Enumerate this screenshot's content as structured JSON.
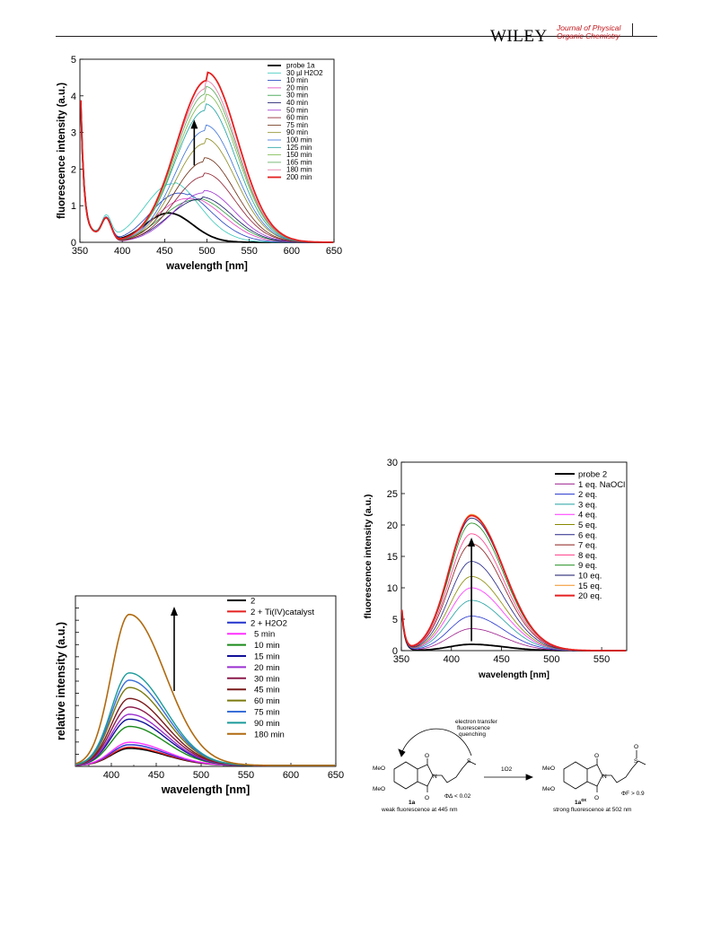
{
  "header": {
    "publisher": "WILEY",
    "journal_line1": "Journal of Physical",
    "journal_line2": "Organic Chemistry"
  },
  "chart_data": [
    {
      "type": "line",
      "xlabel": "wavelength [nm]",
      "ylabel": "fluorescence intensity (a.u.)",
      "xlim": [
        350,
        650
      ],
      "ylim": [
        0,
        5
      ],
      "xticks": [
        350,
        400,
        450,
        500,
        550,
        600,
        650
      ],
      "yticks": [
        0,
        1,
        2,
        3,
        4,
        5
      ],
      "legend_position": "top-right",
      "arrow": {
        "x": 485,
        "y_from": 2.1,
        "y_to": 3.35
      },
      "series": [
        {
          "name": "probe 1a",
          "peak_x": 452,
          "peak_y": 1.0,
          "color": "#000000",
          "bold": true
        },
        {
          "name": "30 µl H2O2",
          "peak_x": 462,
          "peak_y": 0.95,
          "color": "#35c7b9"
        },
        {
          "name": "10 min",
          "peak_x": 478,
          "peak_y": 0.92,
          "color": "#1d3fbf"
        },
        {
          "name": "20 min",
          "peak_x": 488,
          "peak_y": 0.97,
          "color": "#e23fbd"
        },
        {
          "name": "30 min",
          "peak_x": 492,
          "peak_y": 1.05,
          "color": "#2a9a3a"
        },
        {
          "name": "40 min",
          "peak_x": 494,
          "peak_y": 1.15,
          "color": "#111166"
        },
        {
          "name": "50 min",
          "peak_x": 496,
          "peak_y": 1.35,
          "color": "#9b30d0"
        },
        {
          "name": "60 min",
          "peak_x": 497,
          "peak_y": 1.8,
          "color": "#8c1a2a"
        },
        {
          "name": "75 min",
          "peak_x": 497,
          "peak_y": 2.2,
          "color": "#6b2a10"
        },
        {
          "name": "90 min",
          "peak_x": 498,
          "peak_y": 2.7,
          "color": "#8a8a20"
        },
        {
          "name": "100 min",
          "peak_x": 498,
          "peak_y": 3.05,
          "color": "#3a6fd8"
        },
        {
          "name": "125 min",
          "peak_x": 498,
          "peak_y": 3.6,
          "color": "#1aa0a0"
        },
        {
          "name": "150 min",
          "peak_x": 499,
          "peak_y": 3.85,
          "color": "#7ab84a"
        },
        {
          "name": "165 min",
          "peak_x": 499,
          "peak_y": 4.05,
          "color": "#5aa85a"
        },
        {
          "name": "180 min",
          "peak_x": 499,
          "peak_y": 4.2,
          "color": "#e070a0"
        },
        {
          "name": "200 min",
          "peak_x": 500,
          "peak_y": 4.42,
          "color": "#e52020",
          "bold": true
        }
      ]
    },
    {
      "type": "line",
      "xlabel": "wavelength [nm]",
      "ylabel": "fluorescence intensity (a.u.)",
      "xlim": [
        350,
        575
      ],
      "ylim": [
        0,
        30
      ],
      "xticks": [
        350,
        400,
        450,
        500,
        550
      ],
      "yticks": [
        0,
        5,
        10,
        15,
        20,
        25,
        30
      ],
      "legend_position": "top-right",
      "arrow": {
        "x": 420,
        "y_from": 1.5,
        "y_to": 18
      },
      "series": [
        {
          "name": "probe 2",
          "peak_y": 1.0,
          "color": "#000000",
          "bold": true
        },
        {
          "name": "1 eq. NaOCl",
          "peak_y": 3.5,
          "color": "#9b1a8a"
        },
        {
          "name": "2 eq.",
          "peak_y": 5.5,
          "color": "#2233cc"
        },
        {
          "name": "3 eq.",
          "peak_y": 8.0,
          "color": "#22a0a0"
        },
        {
          "name": "4 eq.",
          "peak_y": 10.0,
          "color": "#ff30ff"
        },
        {
          "name": "5 eq.",
          "peak_y": 11.8,
          "color": "#888800"
        },
        {
          "name": "6 eq.",
          "peak_y": 14.2,
          "color": "#222288"
        },
        {
          "name": "7 eq.",
          "peak_y": 17.0,
          "color": "#8b1a1a"
        },
        {
          "name": "8 eq.",
          "peak_y": 18.6,
          "color": "#ff3a8a"
        },
        {
          "name": "9 eq.",
          "peak_y": 20.3,
          "color": "#1a8a1a"
        },
        {
          "name": "10 eq.",
          "peak_y": 21.1,
          "color": "#111166"
        },
        {
          "name": "15 eq.",
          "peak_y": 21.7,
          "color": "#f09020"
        },
        {
          "name": "20 eq.",
          "peak_y": 21.5,
          "color": "#e52020",
          "bold": true
        }
      ]
    },
    {
      "type": "line",
      "xlabel": "wavelength [nm]",
      "ylabel": "relative intensity (a.u.)",
      "xlim": [
        360,
        650
      ],
      "xticks": [
        400,
        450,
        500,
        550,
        600,
        650
      ],
      "legend_position": "top-right",
      "arrow": {
        "x": 470
      },
      "series": [
        {
          "name": "2",
          "peak_y": 0.07,
          "color": "#000000",
          "bold": true
        },
        {
          "name": "2 + Ti(IV)catalyst",
          "peak_y": 0.075,
          "color": "#e52020"
        },
        {
          "name": "2 + H2O2",
          "peak_y": 0.085,
          "color": "#2233cc"
        },
        {
          "name": "5 min",
          "peak_y": 0.095,
          "color": "#ff30ff"
        },
        {
          "name": "10 min",
          "peak_y": 0.16,
          "color": "#1a8a1a"
        },
        {
          "name": "15 min",
          "peak_y": 0.19,
          "color": "#111199"
        },
        {
          "name": "20 min",
          "peak_y": 0.21,
          "color": "#9b30d0"
        },
        {
          "name": "30 min",
          "peak_y": 0.24,
          "color": "#8b1a4a"
        },
        {
          "name": "45 min",
          "peak_y": 0.275,
          "color": "#7a1a1a"
        },
        {
          "name": "60 min",
          "peak_y": 0.32,
          "color": "#7a7a10"
        },
        {
          "name": "75 min",
          "peak_y": 0.35,
          "color": "#3a6fd8"
        },
        {
          "name": "90 min",
          "peak_y": 0.38,
          "color": "#1a9a9a"
        },
        {
          "name": "180 min",
          "peak_y": 0.62,
          "color": "#b06a10",
          "bold": true
        }
      ]
    }
  ],
  "scheme": {
    "compound1_label": "1a",
    "compound2_label": "1a",
    "compound2_sup": "ox",
    "annotation": "electron transfer fluorescence quenching",
    "reagent": "1O2",
    "phi1": "Φ∆ < 0.02",
    "phi2": "ΦF > 0.9",
    "caption1": "weak fluorescence at 445 nm",
    "caption2": "strong fluorescence at 502 nm",
    "meo": "MeO",
    "o": "O",
    "n": "N",
    "s": "S"
  }
}
